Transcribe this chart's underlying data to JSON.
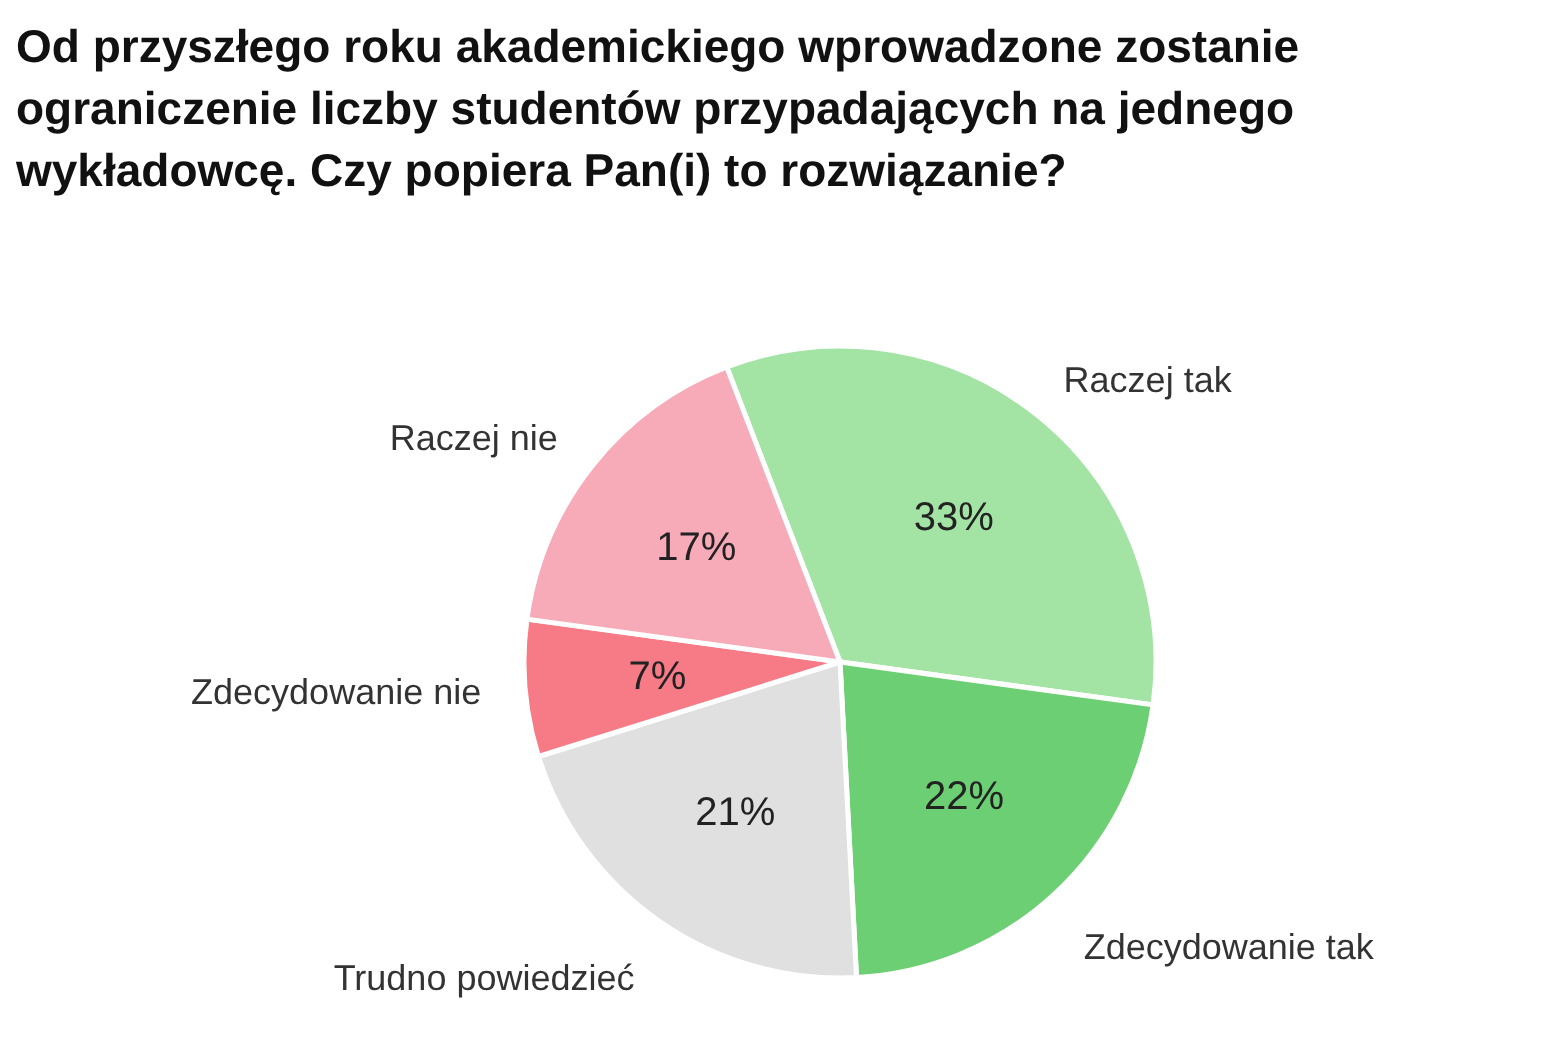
{
  "chart_data": {
    "type": "pie",
    "title": "Od przyszłego roku akademickiego wprowadzone zostanie ograniczenie liczby studentów przypadających na jednego wykładowcę. Czy popiera Pan(i) to rozwiązanie?",
    "categories": [
      "Raczej tak",
      "Zdecydowanie tak",
      "Trudno powiedzieć",
      "Zdecydowanie nie",
      "Raczej nie"
    ],
    "values": [
      33,
      22,
      21,
      7,
      17
    ],
    "colors": [
      "#a3e4a5",
      "#6dcf73",
      "#e0e0e0",
      "#f77b86",
      "#f7aab8"
    ],
    "value_labels": [
      "33%",
      "22%",
      "21%",
      "7%",
      "17%"
    ]
  }
}
